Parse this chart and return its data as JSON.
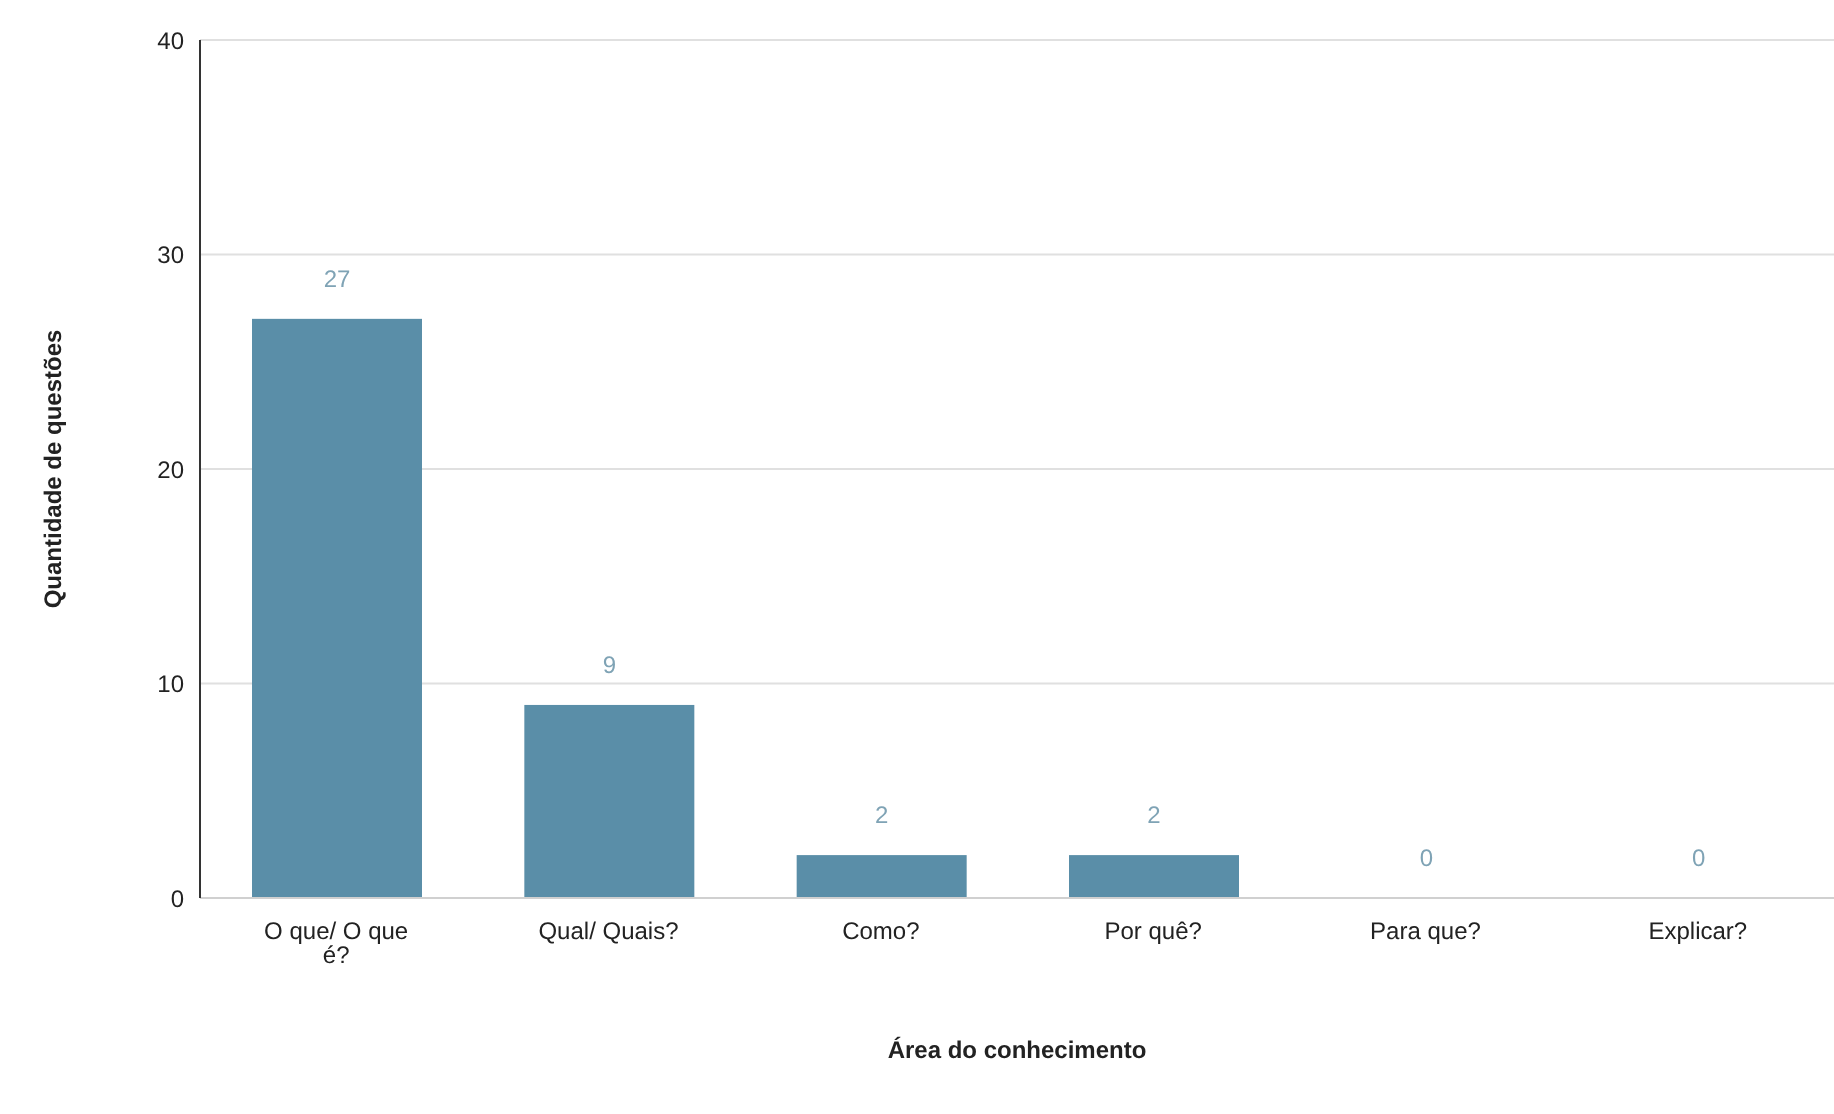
{
  "chart_data": {
    "type": "bar",
    "xlabel": "Área do conhecimento",
    "ylabel": "Quantidade de questões",
    "categories": [
      "O que/ O que é?",
      "Qual/ Quais?",
      "Como?",
      "Por quê?",
      "Para que?",
      "Explicar?"
    ],
    "values": [
      27,
      9,
      2,
      2,
      0,
      0
    ],
    "color": "#5a8ea8",
    "ylim": [
      0,
      40
    ],
    "yticks": [
      0,
      10,
      20,
      30,
      40
    ],
    "grid": "y",
    "data_labels": true
  }
}
